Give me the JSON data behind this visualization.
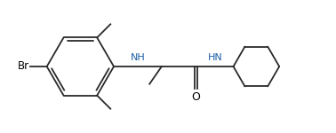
{
  "background_color": "#ffffff",
  "line_color": "#2a2a2a",
  "text_color": "#000000",
  "nh_color": "#1a5fa8",
  "lw": 1.3,
  "figsize": [
    3.78,
    1.5
  ],
  "dpi": 100,
  "xlim": [
    0.0,
    10.5
  ],
  "ylim": [
    0.5,
    4.5
  ]
}
